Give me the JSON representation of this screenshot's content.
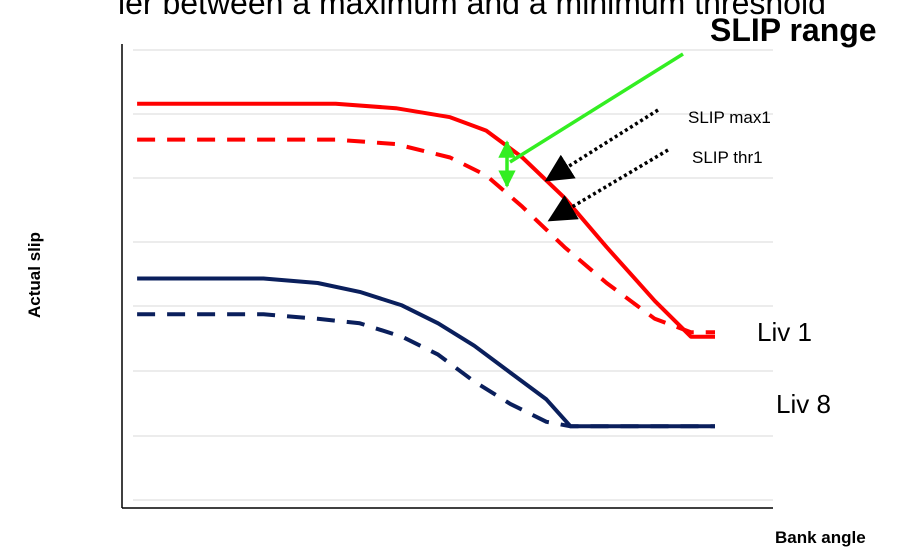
{
  "top_caption": "ier between a maximum and a minimum threshold",
  "slip_range": {
    "label": "SLIP range",
    "color": "#33ee22"
  },
  "callouts": {
    "max": "SLIP max1",
    "thr": "SLIP thr1"
  },
  "colors": {
    "liv1": "#ff0000",
    "liv8": "#0a1f5c",
    "grid": "#d8d8d8",
    "axis": "#000000",
    "arrow": "#000000"
  },
  "chart_data": {
    "type": "line",
    "xlabel": "Bank angle",
    "ylabel": "Actual slip",
    "xlim": [
      0,
      1
    ],
    "ylim": [
      0,
      1
    ],
    "grid": true,
    "series": [
      {
        "name": "Liv 1",
        "style": "solid",
        "color": "#ff0000",
        "points": [
          [
            0.04,
            0.88
          ],
          [
            0.37,
            0.88
          ],
          [
            0.47,
            0.87
          ],
          [
            0.56,
            0.85
          ],
          [
            0.62,
            0.82
          ],
          [
            0.68,
            0.76
          ],
          [
            0.75,
            0.67
          ],
          [
            0.82,
            0.56
          ],
          [
            0.9,
            0.44
          ],
          [
            0.96,
            0.36
          ],
          [
            1.0,
            0.36
          ]
        ]
      },
      {
        "name": "",
        "style": "dashed",
        "color": "#ff0000",
        "points": [
          [
            0.04,
            0.8
          ],
          [
            0.37,
            0.8
          ],
          [
            0.47,
            0.79
          ],
          [
            0.56,
            0.76
          ],
          [
            0.62,
            0.72
          ],
          [
            0.68,
            0.65
          ],
          [
            0.75,
            0.56
          ],
          [
            0.82,
            0.48
          ],
          [
            0.9,
            0.4
          ],
          [
            0.96,
            0.37
          ],
          [
            1.0,
            0.37
          ]
        ]
      },
      {
        "name": "Liv 8",
        "style": "solid",
        "color": "#0a1f5c",
        "points": [
          [
            0.04,
            0.49
          ],
          [
            0.25,
            0.49
          ],
          [
            0.34,
            0.48
          ],
          [
            0.41,
            0.46
          ],
          [
            0.48,
            0.43
          ],
          [
            0.54,
            0.39
          ],
          [
            0.6,
            0.34
          ],
          [
            0.66,
            0.28
          ],
          [
            0.72,
            0.22
          ],
          [
            0.76,
            0.16
          ],
          [
            1.0,
            0.16
          ]
        ]
      },
      {
        "name": "",
        "style": "dashed",
        "color": "#0a1f5c",
        "points": [
          [
            0.04,
            0.41
          ],
          [
            0.25,
            0.41
          ],
          [
            0.34,
            0.4
          ],
          [
            0.41,
            0.39
          ],
          [
            0.48,
            0.36
          ],
          [
            0.54,
            0.32
          ],
          [
            0.6,
            0.26
          ],
          [
            0.66,
            0.21
          ],
          [
            0.72,
            0.17
          ],
          [
            0.76,
            0.16
          ],
          [
            1.0,
            0.16
          ]
        ]
      }
    ]
  }
}
